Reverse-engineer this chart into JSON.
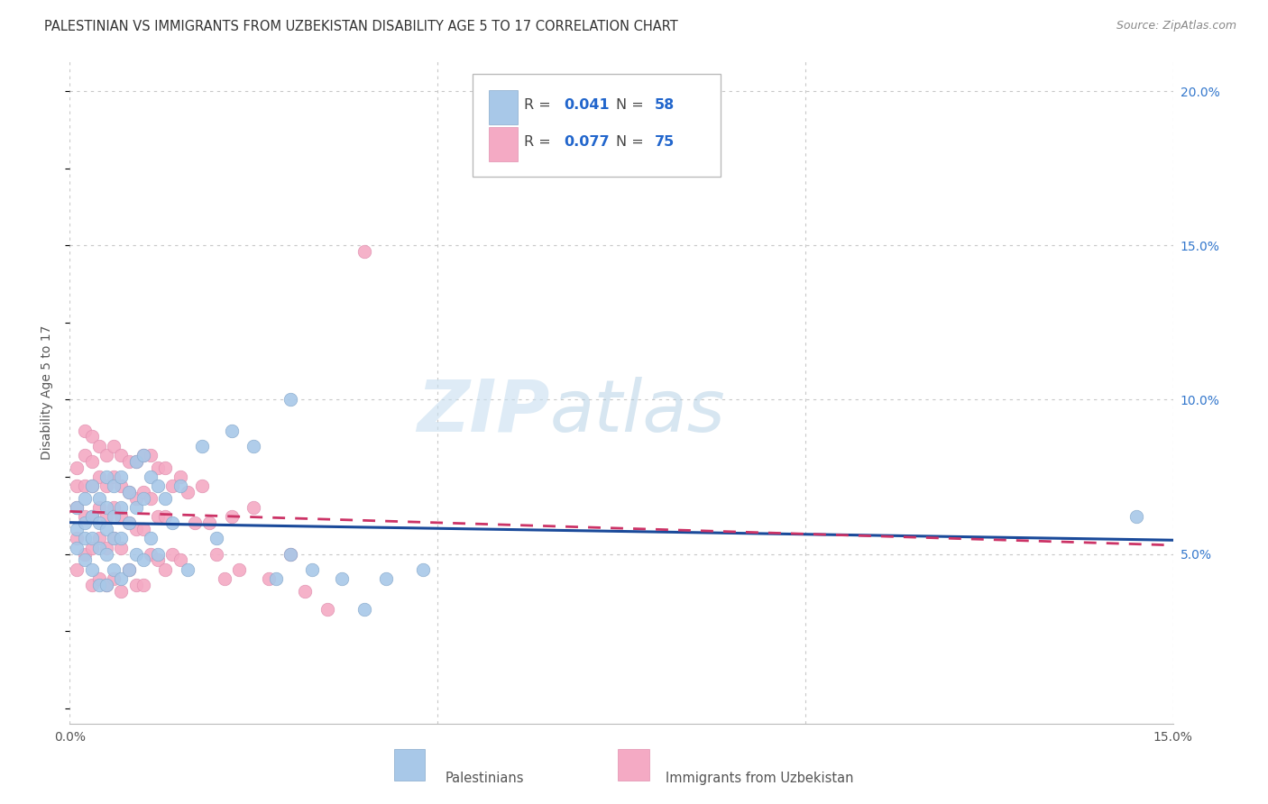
{
  "title": "PALESTINIAN VS IMMIGRANTS FROM UZBEKISTAN DISABILITY AGE 5 TO 17 CORRELATION CHART",
  "source": "Source: ZipAtlas.com",
  "ylabel": "Disability Age 5 to 17",
  "xlim": [
    0.0,
    0.15
  ],
  "ylim": [
    -0.005,
    0.21
  ],
  "yticks_right": [
    0.05,
    0.1,
    0.15,
    0.2
  ],
  "yticklabels_right": [
    "5.0%",
    "10.0%",
    "15.0%",
    "20.0%"
  ],
  "grid_color": "#c8c8c8",
  "background_color": "#ffffff",
  "color_blue": "#a8c8e8",
  "color_pink": "#f4aac4",
  "line_blue": "#1a4a9a",
  "line_pink": "#cc3366",
  "palestinians_x": [
    0.001,
    0.001,
    0.001,
    0.002,
    0.002,
    0.002,
    0.002,
    0.003,
    0.003,
    0.003,
    0.003,
    0.004,
    0.004,
    0.004,
    0.004,
    0.005,
    0.005,
    0.005,
    0.005,
    0.005,
    0.006,
    0.006,
    0.006,
    0.006,
    0.007,
    0.007,
    0.007,
    0.007,
    0.008,
    0.008,
    0.008,
    0.009,
    0.009,
    0.009,
    0.01,
    0.01,
    0.01,
    0.011,
    0.011,
    0.012,
    0.012,
    0.013,
    0.014,
    0.015,
    0.016,
    0.018,
    0.02,
    0.022,
    0.025,
    0.028,
    0.03,
    0.033,
    0.037,
    0.04,
    0.043,
    0.048,
    0.03,
    0.145
  ],
  "palestinians_y": [
    0.065,
    0.058,
    0.052,
    0.068,
    0.06,
    0.055,
    0.048,
    0.072,
    0.062,
    0.055,
    0.045,
    0.068,
    0.06,
    0.052,
    0.04,
    0.075,
    0.065,
    0.058,
    0.05,
    0.04,
    0.072,
    0.062,
    0.055,
    0.045,
    0.075,
    0.065,
    0.055,
    0.042,
    0.07,
    0.06,
    0.045,
    0.08,
    0.065,
    0.05,
    0.082,
    0.068,
    0.048,
    0.075,
    0.055,
    0.072,
    0.05,
    0.068,
    0.06,
    0.072,
    0.045,
    0.085,
    0.055,
    0.09,
    0.085,
    0.042,
    0.05,
    0.045,
    0.042,
    0.032,
    0.042,
    0.045,
    0.1,
    0.062
  ],
  "uzbekistan_x": [
    0.001,
    0.001,
    0.001,
    0.001,
    0.001,
    0.002,
    0.002,
    0.002,
    0.002,
    0.002,
    0.003,
    0.003,
    0.003,
    0.003,
    0.003,
    0.003,
    0.004,
    0.004,
    0.004,
    0.004,
    0.004,
    0.005,
    0.005,
    0.005,
    0.005,
    0.005,
    0.006,
    0.006,
    0.006,
    0.006,
    0.006,
    0.007,
    0.007,
    0.007,
    0.007,
    0.007,
    0.008,
    0.008,
    0.008,
    0.008,
    0.009,
    0.009,
    0.009,
    0.009,
    0.01,
    0.01,
    0.01,
    0.01,
    0.011,
    0.011,
    0.011,
    0.012,
    0.012,
    0.012,
    0.013,
    0.013,
    0.013,
    0.014,
    0.014,
    0.015,
    0.015,
    0.016,
    0.017,
    0.018,
    0.019,
    0.02,
    0.021,
    0.022,
    0.023,
    0.025,
    0.027,
    0.03,
    0.032,
    0.035,
    0.04
  ],
  "uzbekistan_y": [
    0.078,
    0.072,
    0.065,
    0.055,
    0.045,
    0.09,
    0.082,
    0.072,
    0.062,
    0.05,
    0.088,
    0.08,
    0.072,
    0.062,
    0.052,
    0.04,
    0.085,
    0.075,
    0.065,
    0.055,
    0.042,
    0.082,
    0.072,
    0.062,
    0.052,
    0.04,
    0.085,
    0.075,
    0.065,
    0.055,
    0.042,
    0.082,
    0.072,
    0.062,
    0.052,
    0.038,
    0.08,
    0.07,
    0.06,
    0.045,
    0.08,
    0.068,
    0.058,
    0.04,
    0.082,
    0.07,
    0.058,
    0.04,
    0.082,
    0.068,
    0.05,
    0.078,
    0.062,
    0.048,
    0.078,
    0.062,
    0.045,
    0.072,
    0.05,
    0.075,
    0.048,
    0.07,
    0.06,
    0.072,
    0.06,
    0.05,
    0.042,
    0.062,
    0.045,
    0.065,
    0.042,
    0.05,
    0.038,
    0.032,
    0.148
  ]
}
